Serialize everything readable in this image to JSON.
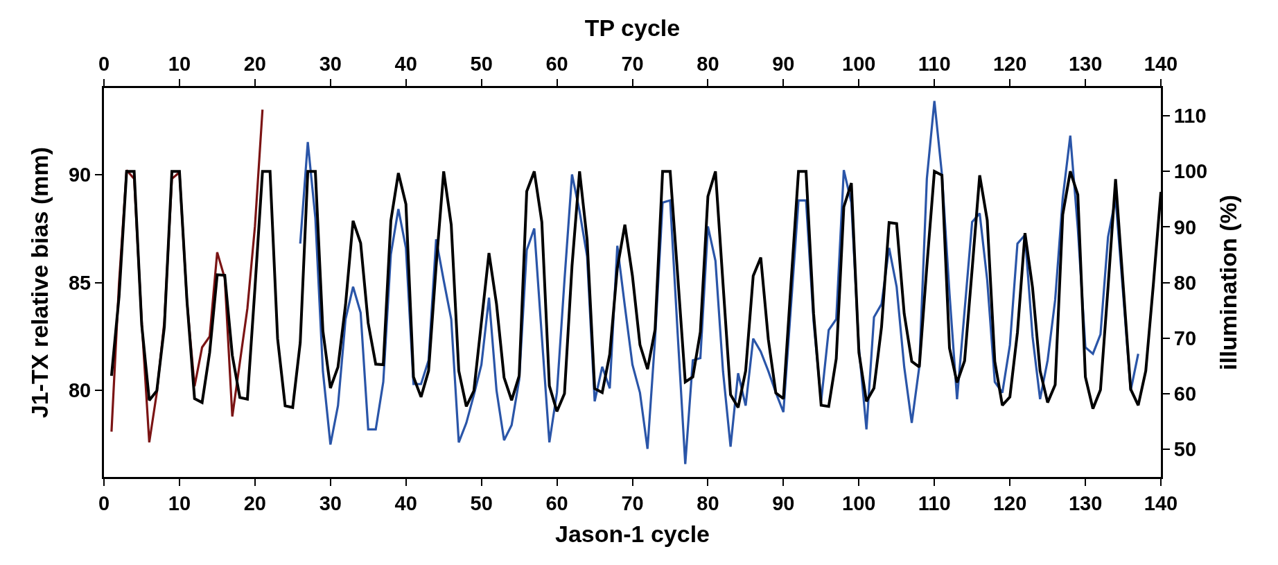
{
  "chart_data": {
    "type": "line",
    "xlabel": "Jason-1 cycle",
    "x2label": "TP cycle",
    "ylabel": "J1-TX relative bias (mm)",
    "y2label": "illumination (%)",
    "xlim": [
      0,
      140
    ],
    "xticks": [
      0,
      10,
      20,
      30,
      40,
      50,
      60,
      70,
      80,
      90,
      100,
      110,
      120,
      130,
      140
    ],
    "x2lim": [
      0,
      140
    ],
    "x2ticks": [
      0,
      10,
      20,
      30,
      40,
      50,
      60,
      70,
      80,
      90,
      100,
      110,
      120,
      130,
      140
    ],
    "ylim": [
      76,
      94
    ],
    "yticks": [
      80,
      85,
      90
    ],
    "y2lim": [
      45,
      115
    ],
    "y2ticks": [
      50,
      60,
      70,
      80,
      90,
      100,
      110
    ],
    "series": [
      {
        "color": "#7b1414",
        "x": [
          1,
          2,
          3,
          4,
          5,
          6,
          7,
          8,
          9,
          10,
          11,
          12,
          13,
          14,
          15,
          16,
          17,
          18,
          19,
          20,
          21
        ],
        "values": [
          78.1,
          85,
          90.2,
          89.8,
          83.2,
          77.6,
          79.9,
          83.2,
          89.8,
          90.1,
          84.1,
          80.2,
          82,
          82.5,
          86.4,
          85.2,
          78.8,
          81.3,
          83.8,
          87.6,
          93.0
        ]
      },
      {
        "color": "#2a55a8",
        "x": [
          26,
          27,
          28,
          29,
          30,
          31,
          32,
          33,
          34,
          35,
          36,
          37,
          38,
          39,
          40,
          41,
          42,
          43,
          44,
          45,
          46,
          47,
          48,
          49,
          50,
          51,
          52,
          53,
          54,
          55,
          56,
          57,
          58,
          59,
          60,
          61,
          62,
          63,
          64,
          65,
          66,
          67,
          68,
          69,
          70,
          71,
          72,
          73,
          74,
          75,
          76,
          77,
          78,
          79,
          80,
          81,
          82,
          83,
          84,
          85,
          86,
          87,
          88,
          89,
          90,
          91,
          92,
          93,
          94,
          95,
          96,
          97,
          98,
          99,
          100,
          101,
          102,
          103,
          104,
          105,
          106,
          107,
          108,
          109,
          110,
          111,
          112,
          113,
          114,
          115,
          116,
          117,
          118,
          119,
          120,
          121,
          122,
          123,
          124,
          125,
          126,
          127,
          128,
          129,
          130,
          131,
          132,
          133,
          134,
          135,
          136,
          137
        ],
        "values": [
          86.8,
          91.5,
          88,
          80.9,
          77.5,
          79.3,
          83.3,
          84.8,
          83.6,
          78.2,
          78.2,
          80.4,
          86.3,
          88.4,
          86.6,
          80.3,
          80.3,
          81.4,
          87,
          85.1,
          83.3,
          77.6,
          78.5,
          79.8,
          81.2,
          84.3,
          80,
          77.7,
          78.4,
          80.5,
          86.5,
          87.5,
          82.5,
          77.6,
          79.9,
          85.1,
          90,
          88.3,
          86.2,
          79.5,
          81.1,
          80.1,
          86.7,
          83.9,
          81.2,
          79.9,
          77.3,
          82.4,
          88.7,
          88.8,
          82.6,
          76.6,
          81.4,
          81.5,
          87.6,
          86,
          80.9,
          77.4,
          80.8,
          79.3,
          82.4,
          81.8,
          80.9,
          79.9,
          79,
          83.9,
          88.8,
          88.8,
          83.2,
          79.5,
          82.8,
          83.3,
          90.2,
          88.7,
          82,
          78.2,
          83.4,
          84,
          86.6,
          84.8,
          81.1,
          78.5,
          81.1,
          89.8,
          93.4,
          90,
          84.5,
          79.6,
          83.7,
          87.8,
          88.2,
          85.1,
          80.4,
          79.9,
          82.1,
          86.8,
          87.2,
          82.5,
          79.6,
          81.4,
          84.2,
          88.9,
          91.8,
          87.5,
          82,
          81.7,
          82.6,
          87.1,
          88.9,
          84.5,
          80,
          81.7
        ]
      },
      {
        "color": "#000000",
        "axis": "y2",
        "x": [
          1,
          2,
          3,
          4,
          5,
          6,
          7,
          8,
          9,
          10,
          11,
          12,
          13,
          14,
          15,
          16,
          17,
          18,
          19,
          20,
          21,
          22,
          23,
          24,
          25,
          26,
          27,
          28,
          29,
          30,
          31,
          32,
          33,
          34,
          35,
          36,
          37,
          38,
          39,
          40,
          41,
          42,
          43,
          44,
          45,
          46,
          47,
          48,
          49,
          50,
          51,
          52,
          53,
          54,
          55,
          56,
          57,
          58,
          59,
          60,
          61,
          62,
          63,
          64,
          65,
          66,
          67,
          68,
          69,
          70,
          71,
          72,
          73,
          74,
          75,
          76,
          77,
          78,
          79,
          80,
          81,
          82,
          83,
          84,
          85,
          86,
          87,
          88,
          89,
          90,
          91,
          92,
          93,
          94,
          95,
          96,
          97,
          98,
          99,
          100,
          101,
          102,
          103,
          104,
          105,
          106,
          107,
          108,
          109,
          110,
          111,
          112,
          113,
          114,
          115,
          116,
          117,
          118,
          119,
          120,
          121,
          122,
          123,
          124,
          125,
          126,
          127,
          128,
          129,
          130,
          131,
          132,
          133,
          134,
          135,
          136,
          137,
          138,
          139,
          140
        ],
        "values": [
          63.2,
          77.5,
          100,
          100,
          72.4,
          58.8,
          60.5,
          72,
          100,
          100,
          76.6,
          59.1,
          58.4,
          67.4,
          81.4,
          81.3,
          66.9,
          59.3,
          59,
          79,
          100,
          100,
          69.9,
          57.8,
          57.5,
          69.2,
          100,
          100,
          71.3,
          61,
          64.8,
          76,
          91.1,
          87.1,
          72.7,
          65.3,
          65.2,
          91.1,
          99.7,
          94.1,
          63,
          59.4,
          64.1,
          83,
          100,
          90.4,
          64.1,
          57.7,
          60.5,
          72.9,
          85.3,
          76.1,
          62.9,
          58.8,
          63.2,
          96.4,
          100,
          90.9,
          61.4,
          56.8,
          60,
          83,
          100,
          87.7,
          60.9,
          60.2,
          67.1,
          82.6,
          90.4,
          81.2,
          68.8,
          64.4,
          71.5,
          100,
          100,
          81.2,
          62.1,
          63,
          71.1,
          95.5,
          100,
          79.8,
          59.8,
          57.5,
          64.1,
          81.2,
          84.5,
          69.8,
          60.1,
          59.1,
          79.6,
          100,
          100,
          74.4,
          57.9,
          57.7,
          66.3,
          93.6,
          97.9,
          67.4,
          58.6,
          61,
          72,
          90.8,
          90.6,
          74.4,
          65.8,
          64.8,
          82.9,
          100,
          99.3,
          68.2,
          62,
          65.9,
          82.4,
          99.3,
          91.2,
          65.8,
          57.9,
          59.4,
          71,
          88.9,
          79.1,
          64.1,
          58.4,
          61.6,
          92.2,
          100,
          95.8,
          63,
          57.3,
          60.7,
          79.1,
          98.6,
          79.6,
          60.8,
          57.9,
          64.1,
          79.6,
          96.3
        ]
      }
    ]
  }
}
